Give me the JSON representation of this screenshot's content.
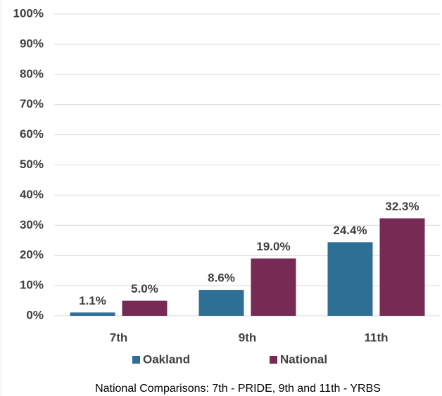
{
  "chart_data": {
    "type": "bar",
    "note": "National Comparisons: 7th - PRIDE, 9th and 11th - YRBS",
    "categories": [
      "7th",
      "9th",
      "11th"
    ],
    "series": [
      {
        "name": "Oakland",
        "color": "#2e6f96",
        "values": [
          1.1,
          8.6,
          24.4
        ],
        "value_labels": [
          "1.1%",
          "8.6%",
          "24.4%"
        ]
      },
      {
        "name": "National",
        "color": "#772a53",
        "values": [
          5.0,
          19.0,
          32.3
        ],
        "value_labels": [
          "5.0%",
          "19.0%",
          "32.3%"
        ]
      }
    ],
    "ylim": [
      0,
      100
    ],
    "yticks": [
      {
        "value": 0,
        "label": "0%"
      },
      {
        "value": 10,
        "label": "10%"
      },
      {
        "value": 20,
        "label": "20%"
      },
      {
        "value": 30,
        "label": "30%"
      },
      {
        "value": 40,
        "label": "40%"
      },
      {
        "value": 50,
        "label": "50%"
      },
      {
        "value": 60,
        "label": "60%"
      },
      {
        "value": 70,
        "label": "70%"
      },
      {
        "value": 80,
        "label": "80%"
      },
      {
        "value": 90,
        "label": "90%"
      },
      {
        "value": 100,
        "label": "100%"
      }
    ],
    "grid": true,
    "legend": "bottom"
  }
}
